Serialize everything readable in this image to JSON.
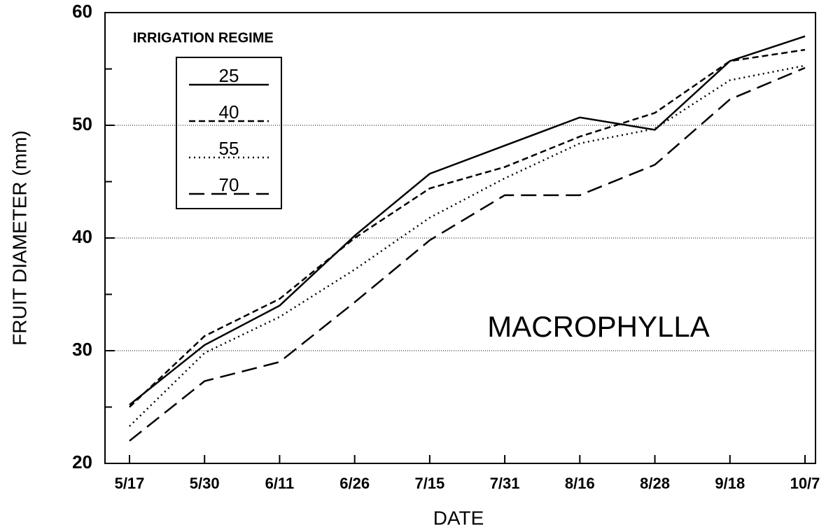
{
  "chart_data": {
    "type": "line",
    "annotation": "MACROPHYLLA",
    "xlabel": "DATE",
    "ylabel": "FRUIT DIAMETER (mm)",
    "legend_title": "IRRIGATION REGIME",
    "legend": "upper left",
    "categories": [
      "5/17",
      "5/30",
      "6/11",
      "6/26",
      "7/15",
      "7/31",
      "8/16",
      "8/28",
      "9/18",
      "10/7"
    ],
    "series": [
      {
        "name": "25",
        "color": "#000000",
        "dash": "solid",
        "values": [
          25.2,
          30.5,
          34,
          40.2,
          45.7,
          48.2,
          50.7,
          49.6,
          55.7,
          57.9
        ]
      },
      {
        "name": "40",
        "color": "#000000",
        "dash": "dashed",
        "values": [
          25,
          31.3,
          34.6,
          40,
          44.4,
          46.3,
          49,
          51.1,
          55.7,
          56.7
        ]
      },
      {
        "name": "55",
        "color": "#000000",
        "dash": "dotted",
        "values": [
          23.3,
          29.8,
          33,
          37.2,
          41.8,
          45.3,
          48.4,
          49.7,
          54,
          55.3
        ]
      },
      {
        "name": "70",
        "color": "#000000",
        "dash": "longdash",
        "values": [
          22,
          27.3,
          29,
          34.3,
          39.8,
          43.8,
          43.8,
          46.5,
          52.3,
          55.1
        ]
      }
    ],
    "ylim": [
      20,
      60
    ],
    "yticks": [
      20,
      30,
      40,
      50,
      60
    ],
    "yticks_minor": [
      25,
      35,
      45,
      55
    ],
    "grid": true
  }
}
